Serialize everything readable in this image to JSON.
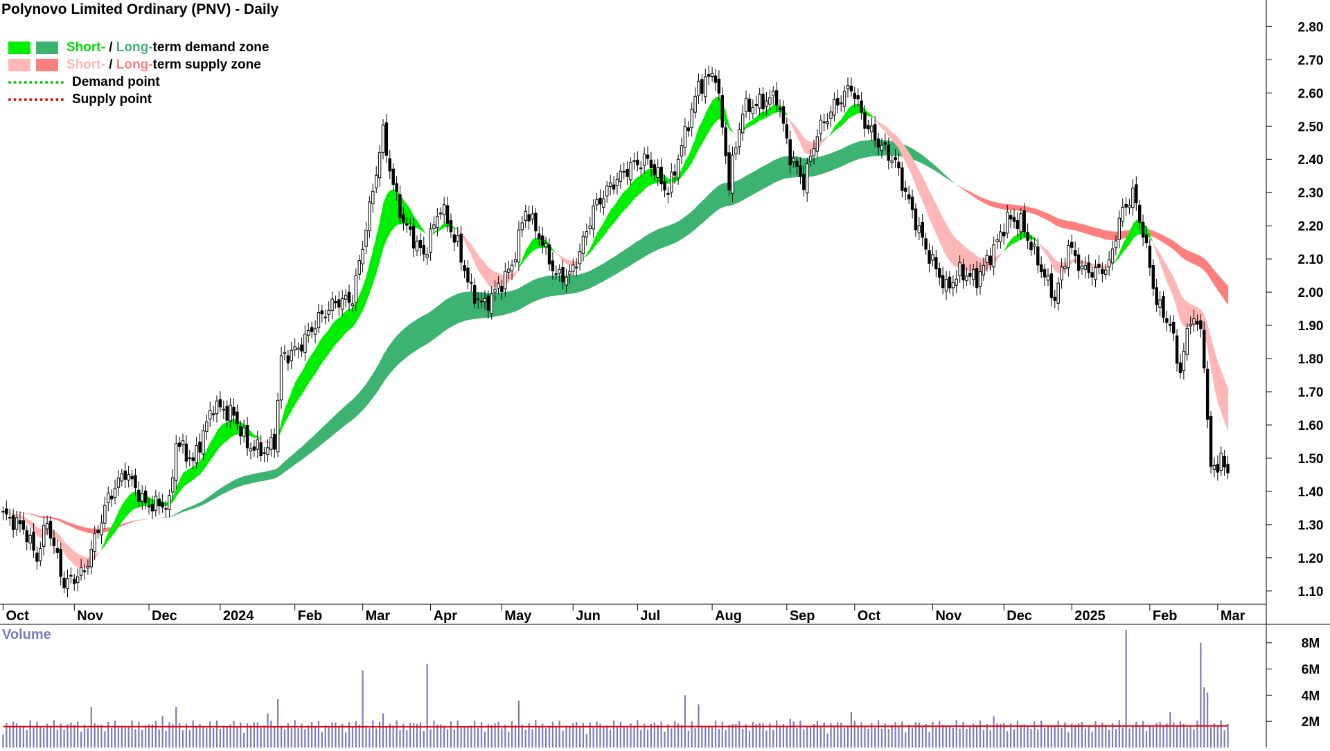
{
  "title": "Polynovo Limited Ordinary (PNV) - Daily",
  "legend": {
    "row1": {
      "short": "Short-",
      "sep": " / ",
      "long": "Long-",
      "rest": "term demand zone"
    },
    "row2": {
      "short": "Short-",
      "sep": " / ",
      "long": "Long-",
      "rest": "term supply zone"
    },
    "row3": "Demand point",
    "row4": "Supply point"
  },
  "colors": {
    "short_demand": "#00ee00",
    "long_demand": "#3cb371",
    "short_supply": "#ffb6b6",
    "long_supply": "#ff7f7f",
    "cross_orange": "#ff6a22",
    "demand_point": "#00cc00",
    "supply_point": "#ee0000",
    "volume_bar": "#7b7bbd",
    "volume_avg": "#ee0000",
    "candle": "#000000"
  },
  "volume_label": "Volume",
  "chart_data": {
    "type": "candlestick",
    "ticker": "PNV",
    "price_axis": {
      "ticks": [
        1.1,
        1.2,
        1.3,
        1.4,
        1.5,
        1.6,
        1.7,
        1.8,
        1.9,
        2.0,
        2.1,
        2.2,
        2.3,
        2.4,
        2.5,
        2.6,
        2.7,
        2.8
      ],
      "tick_labels": [
        "1.10",
        "1.20",
        "1.30",
        "1.40",
        "1.50",
        "1.60",
        "1.70",
        "1.80",
        "1.90",
        "2.00",
        "2.10",
        "2.20",
        "2.30",
        "2.40",
        "2.50",
        "2.60",
        "2.70",
        "2.80"
      ],
      "range": [
        1.06,
        2.88
      ]
    },
    "time_axis": {
      "labels": [
        "Oct",
        "Nov",
        "Dec",
        "2024",
        "Feb",
        "Mar",
        "Apr",
        "May",
        "Jun",
        "Jul",
        "Aug",
        "Sep",
        "Oct",
        "Nov",
        "Dec",
        "2025",
        "Feb",
        "Mar"
      ],
      "bold_labels": [
        "2024",
        "2025"
      ],
      "session_index": [
        0,
        21,
        43,
        64,
        86,
        106,
        126,
        147,
        168,
        187,
        209,
        231,
        251,
        274,
        295,
        315,
        338,
        358
      ],
      "total_sessions": 362
    },
    "close_anchors": [
      [
        0,
        1.33
      ],
      [
        6,
        1.29
      ],
      [
        10,
        1.2
      ],
      [
        13,
        1.31
      ],
      [
        18,
        1.12
      ],
      [
        24,
        1.16
      ],
      [
        31,
        1.38
      ],
      [
        36,
        1.46
      ],
      [
        42,
        1.36
      ],
      [
        49,
        1.36
      ],
      [
        51,
        1.55
      ],
      [
        56,
        1.49
      ],
      [
        62,
        1.66
      ],
      [
        68,
        1.63
      ],
      [
        72,
        1.54
      ],
      [
        77,
        1.52
      ],
      [
        80,
        1.55
      ],
      [
        82,
        1.8
      ],
      [
        87,
        1.83
      ],
      [
        93,
        1.92
      ],
      [
        98,
        1.97
      ],
      [
        103,
        1.98
      ],
      [
        108,
        2.25
      ],
      [
        112,
        2.48
      ],
      [
        115,
        2.32
      ],
      [
        118,
        2.21
      ],
      [
        124,
        2.11
      ],
      [
        129,
        2.26
      ],
      [
        134,
        2.14
      ],
      [
        138,
        2.0
      ],
      [
        142,
        1.96
      ],
      [
        147,
        2.03
      ],
      [
        150,
        2.08
      ],
      [
        154,
        2.25
      ],
      [
        158,
        2.17
      ],
      [
        163,
        2.05
      ],
      [
        167,
        2.05
      ],
      [
        170,
        2.12
      ],
      [
        174,
        2.25
      ],
      [
        179,
        2.32
      ],
      [
        185,
        2.38
      ],
      [
        190,
        2.4
      ],
      [
        196,
        2.3
      ],
      [
        200,
        2.44
      ],
      [
        205,
        2.62
      ],
      [
        210,
        2.66
      ],
      [
        214,
        2.33
      ],
      [
        218,
        2.55
      ],
      [
        223,
        2.57
      ],
      [
        228,
        2.59
      ],
      [
        232,
        2.41
      ],
      [
        236,
        2.33
      ],
      [
        240,
        2.48
      ],
      [
        245,
        2.56
      ],
      [
        250,
        2.62
      ],
      [
        254,
        2.51
      ],
      [
        258,
        2.45
      ],
      [
        263,
        2.39
      ],
      [
        267,
        2.27
      ],
      [
        272,
        2.13
      ],
      [
        278,
        2.01
      ],
      [
        282,
        2.06
      ],
      [
        287,
        2.04
      ],
      [
        292,
        2.13
      ],
      [
        296,
        2.22
      ],
      [
        300,
        2.21
      ],
      [
        306,
        2.07
      ],
      [
        310,
        1.98
      ],
      [
        314,
        2.14
      ],
      [
        318,
        2.07
      ],
      [
        322,
        2.06
      ],
      [
        326,
        2.08
      ],
      [
        329,
        2.22
      ],
      [
        333,
        2.3
      ],
      [
        336,
        2.18
      ],
      [
        340,
        1.97
      ],
      [
        344,
        1.9
      ],
      [
        347,
        1.76
      ],
      [
        350,
        1.93
      ],
      [
        353,
        1.88
      ],
      [
        354,
        1.8
      ],
      [
        355,
        1.6
      ],
      [
        356,
        1.47
      ],
      [
        359,
        1.49
      ],
      [
        361,
        1.46
      ]
    ],
    "vol_axis": {
      "ticks": [
        2,
        4,
        6,
        8
      ],
      "tick_labels": [
        "2M",
        "4M",
        "6M",
        "8M"
      ],
      "unit": "M",
      "range": [
        0,
        9.2
      ]
    },
    "volume_spikes": [
      [
        26,
        3.1
      ],
      [
        47,
        2.4
      ],
      [
        51,
        3.1
      ],
      [
        78,
        2.6
      ],
      [
        81,
        3.7
      ],
      [
        106,
        5.9
      ],
      [
        112,
        2.6
      ],
      [
        125,
        6.4
      ],
      [
        152,
        3.6
      ],
      [
        201,
        4.0
      ],
      [
        205,
        3.3
      ],
      [
        232,
        2.2
      ],
      [
        250,
        2.7
      ],
      [
        265,
        2.0
      ],
      [
        292,
        2.4
      ],
      [
        331,
        9.0
      ],
      [
        344,
        2.7
      ],
      [
        353,
        8.0
      ],
      [
        354,
        4.6
      ],
      [
        355,
        4.2
      ]
    ],
    "volume_avg_millions": 1.6
  }
}
